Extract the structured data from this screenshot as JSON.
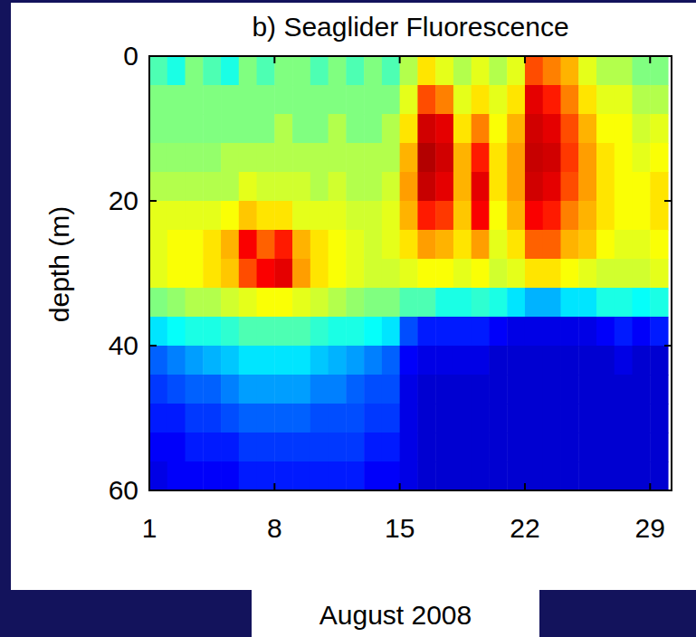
{
  "chart_data": {
    "type": "heatmap",
    "title": "b) Seaglider Fluorescence",
    "x_label": "August 2008",
    "y_label": "depth (m)",
    "x": [
      1.5,
      2.5,
      3.5,
      4.5,
      5.5,
      6.5,
      7.5,
      8.5,
      9.5,
      10.5,
      11.5,
      12.5,
      13.5,
      14.5,
      15.5,
      16.5,
      17.5,
      18.5,
      19.5,
      20.5,
      21.5,
      22.5,
      23.5,
      24.5,
      25.5,
      26.5,
      27.5,
      28.5,
      29.5
    ],
    "y": [
      2,
      6,
      10,
      14,
      18,
      22,
      26,
      30,
      34,
      38,
      42,
      46,
      50,
      54,
      58
    ],
    "xlim": [
      1,
      30.2
    ],
    "ylim": [
      0,
      60
    ],
    "xticks": [
      1,
      8,
      15,
      22,
      29
    ],
    "yticks": [
      0,
      20,
      40,
      60
    ],
    "zlim": [
      0,
      1
    ],
    "cells": [
      [
        0.45,
        0.4,
        0.5,
        0.45,
        0.4,
        0.5,
        0.45,
        0.5,
        0.5,
        0.45,
        0.5,
        0.45,
        0.5,
        0.45,
        0.55,
        0.65,
        0.6,
        0.55,
        0.6,
        0.55,
        0.6,
        0.8,
        0.75,
        0.7,
        0.6,
        0.55,
        0.55,
        0.5,
        0.5
      ],
      [
        0.5,
        0.5,
        0.5,
        0.5,
        0.5,
        0.5,
        0.5,
        0.5,
        0.5,
        0.5,
        0.5,
        0.5,
        0.5,
        0.5,
        0.6,
        0.8,
        0.75,
        0.6,
        0.65,
        0.6,
        0.65,
        0.9,
        0.85,
        0.75,
        0.65,
        0.6,
        0.6,
        0.55,
        0.55
      ],
      [
        0.5,
        0.5,
        0.5,
        0.5,
        0.5,
        0.5,
        0.5,
        0.55,
        0.5,
        0.5,
        0.55,
        0.5,
        0.5,
        0.55,
        0.65,
        0.92,
        0.9,
        0.65,
        0.75,
        0.62,
        0.7,
        0.92,
        0.9,
        0.8,
        0.7,
        0.62,
        0.62,
        0.58,
        0.6
      ],
      [
        0.52,
        0.52,
        0.52,
        0.52,
        0.55,
        0.55,
        0.55,
        0.55,
        0.55,
        0.55,
        0.55,
        0.55,
        0.55,
        0.55,
        0.7,
        0.95,
        0.92,
        0.7,
        0.85,
        0.65,
        0.72,
        0.93,
        0.92,
        0.82,
        0.72,
        0.65,
        0.62,
        0.6,
        0.62
      ],
      [
        0.55,
        0.55,
        0.55,
        0.55,
        0.55,
        0.6,
        0.58,
        0.58,
        0.58,
        0.55,
        0.58,
        0.55,
        0.55,
        0.58,
        0.72,
        0.93,
        0.9,
        0.7,
        0.9,
        0.65,
        0.72,
        0.92,
        0.9,
        0.8,
        0.72,
        0.65,
        0.62,
        0.62,
        0.65
      ],
      [
        0.6,
        0.6,
        0.6,
        0.6,
        0.62,
        0.68,
        0.65,
        0.65,
        0.6,
        0.6,
        0.6,
        0.58,
        0.58,
        0.6,
        0.7,
        0.85,
        0.82,
        0.68,
        0.88,
        0.62,
        0.7,
        0.88,
        0.85,
        0.75,
        0.7,
        0.65,
        0.62,
        0.62,
        0.65
      ],
      [
        0.6,
        0.62,
        0.62,
        0.65,
        0.7,
        0.88,
        0.78,
        0.85,
        0.7,
        0.65,
        0.62,
        0.6,
        0.58,
        0.6,
        0.65,
        0.72,
        0.7,
        0.65,
        0.72,
        0.6,
        0.65,
        0.78,
        0.78,
        0.7,
        0.68,
        0.62,
        0.6,
        0.6,
        0.62
      ],
      [
        0.6,
        0.62,
        0.62,
        0.65,
        0.68,
        0.8,
        0.88,
        0.9,
        0.72,
        0.65,
        0.62,
        0.6,
        0.58,
        0.58,
        0.6,
        0.62,
        0.62,
        0.6,
        0.62,
        0.58,
        0.6,
        0.65,
        0.65,
        0.62,
        0.6,
        0.58,
        0.58,
        0.58,
        0.6
      ],
      [
        0.5,
        0.52,
        0.55,
        0.55,
        0.58,
        0.6,
        0.62,
        0.62,
        0.6,
        0.58,
        0.55,
        0.52,
        0.5,
        0.5,
        0.45,
        0.45,
        0.4,
        0.4,
        0.42,
        0.4,
        0.35,
        0.3,
        0.3,
        0.35,
        0.35,
        0.4,
        0.4,
        0.38,
        0.4
      ],
      [
        0.35,
        0.38,
        0.4,
        0.4,
        0.42,
        0.45,
        0.45,
        0.45,
        0.45,
        0.42,
        0.4,
        0.4,
        0.38,
        0.35,
        0.2,
        0.15,
        0.15,
        0.15,
        0.15,
        0.12,
        0.1,
        0.1,
        0.1,
        0.1,
        0.1,
        0.12,
        0.15,
        0.12,
        0.15
      ],
      [
        0.22,
        0.25,
        0.28,
        0.3,
        0.32,
        0.35,
        0.35,
        0.35,
        0.35,
        0.32,
        0.3,
        0.28,
        0.25,
        0.22,
        0.12,
        0.1,
        0.1,
        0.1,
        0.1,
        0.08,
        0.08,
        0.08,
        0.08,
        0.08,
        0.08,
        0.08,
        0.1,
        0.08,
        0.08
      ],
      [
        0.18,
        0.2,
        0.22,
        0.22,
        0.25,
        0.28,
        0.28,
        0.28,
        0.28,
        0.25,
        0.25,
        0.22,
        0.2,
        0.2,
        0.1,
        0.08,
        0.08,
        0.08,
        0.08,
        0.08,
        0.08,
        0.08,
        0.08,
        0.08,
        0.08,
        0.08,
        0.08,
        0.08,
        0.08
      ],
      [
        0.15,
        0.15,
        0.18,
        0.18,
        0.2,
        0.22,
        0.22,
        0.22,
        0.22,
        0.2,
        0.2,
        0.2,
        0.18,
        0.18,
        0.1,
        0.08,
        0.08,
        0.08,
        0.08,
        0.08,
        0.08,
        0.08,
        0.08,
        0.08,
        0.08,
        0.08,
        0.08,
        0.08,
        0.08
      ],
      [
        0.12,
        0.12,
        0.15,
        0.15,
        0.15,
        0.18,
        0.18,
        0.18,
        0.18,
        0.18,
        0.18,
        0.18,
        0.15,
        0.15,
        0.1,
        0.08,
        0.08,
        0.08,
        0.08,
        0.08,
        0.08,
        0.08,
        0.08,
        0.08,
        0.08,
        0.08,
        0.08,
        0.08,
        0.08
      ],
      [
        0.1,
        0.12,
        0.12,
        0.12,
        0.12,
        0.15,
        0.15,
        0.15,
        0.15,
        0.15,
        0.15,
        0.15,
        0.12,
        0.12,
        0.1,
        0.08,
        0.08,
        0.08,
        0.08,
        0.08,
        0.08,
        0.08,
        0.08,
        0.08,
        0.08,
        0.08,
        0.08,
        0.08,
        0.08
      ]
    ]
  }
}
